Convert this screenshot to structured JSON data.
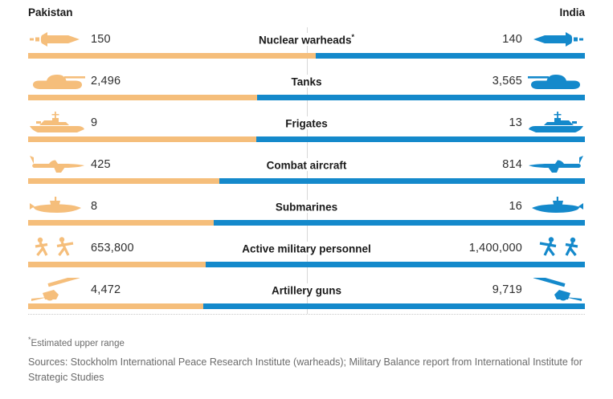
{
  "header": {
    "left": "Pakistan",
    "right": "India"
  },
  "chart_data": {
    "type": "bar",
    "subtype": "bidirectional-comparison",
    "left_series": "Pakistan",
    "right_series": "India",
    "colors": {
      "pakistan": "#F5BE7B",
      "india": "#1489CB"
    },
    "bar_rule": "left segment width proportional to pakistan/(pakistan+india)",
    "rows": [
      {
        "label": "Nuclear warheads",
        "marker": "*",
        "icon": "missile",
        "pakistan": "150",
        "india": "140"
      },
      {
        "label": "Tanks",
        "marker": "",
        "icon": "tank",
        "pakistan": "2,496",
        "india": "3,565"
      },
      {
        "label": "Frigates",
        "marker": "",
        "icon": "frigate",
        "pakistan": "9",
        "india": "13"
      },
      {
        "label": "Combat aircraft",
        "marker": "",
        "icon": "jet",
        "pakistan": "425",
        "india": "814"
      },
      {
        "label": "Submarines",
        "marker": "",
        "icon": "submarine",
        "pakistan": "8",
        "india": "16"
      },
      {
        "label": "Active military personnel",
        "marker": "",
        "icon": "soldiers",
        "pakistan": "653,800",
        "india": "1,400,000"
      },
      {
        "label": "Artillery guns",
        "marker": "",
        "icon": "artillery",
        "pakistan": "4,472",
        "india": "9,719"
      }
    ]
  },
  "footnote": {
    "marker": "*",
    "text": "Estimated upper range"
  },
  "sources": "Sources: Stockholm International Peace Research Institute (warheads); Military Balance report from International Institute for Strategic Studies"
}
